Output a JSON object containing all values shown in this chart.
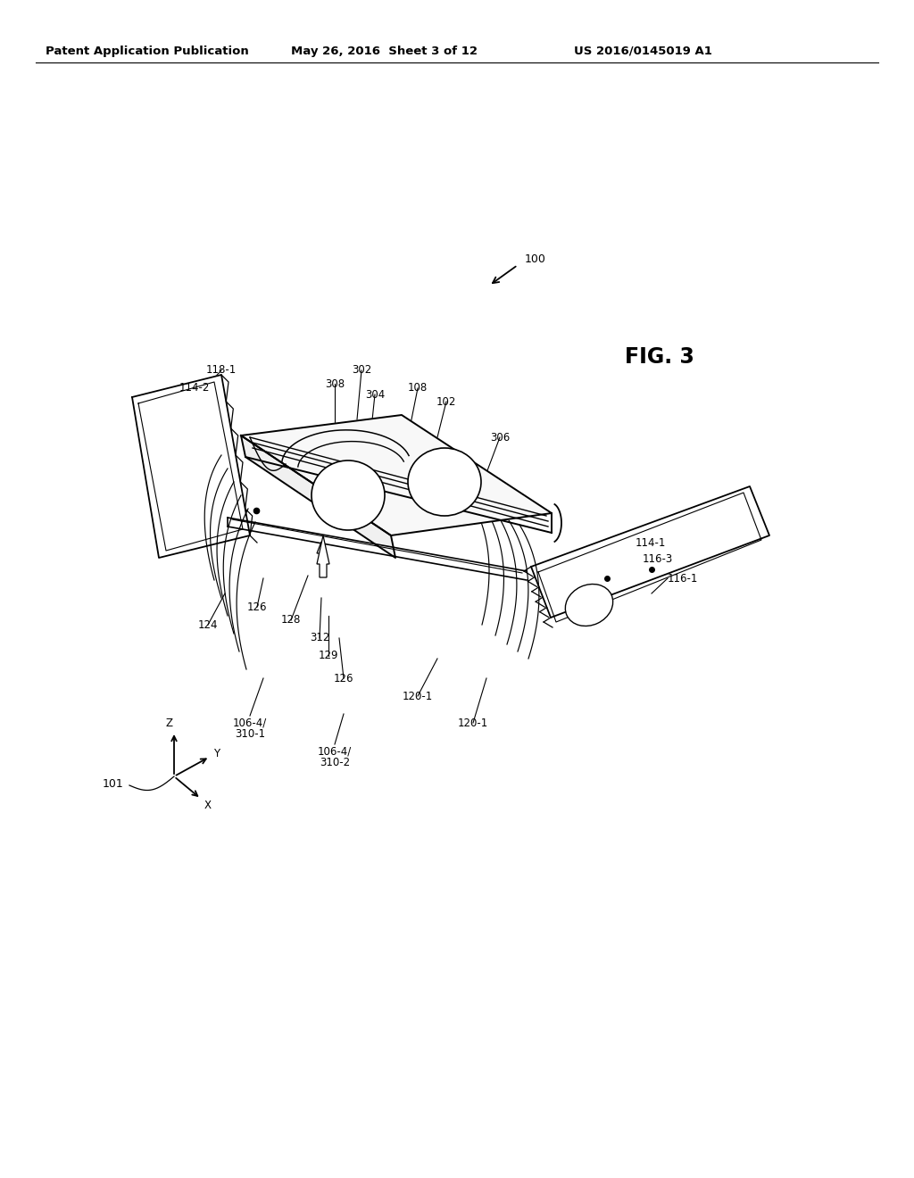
{
  "bg_color": "#ffffff",
  "header_left": "Patent Application Publication",
  "header_center": "May 26, 2016  Sheet 3 of 12",
  "header_right": "US 2016/0145019 A1",
  "fig_label": "FIG. 3"
}
